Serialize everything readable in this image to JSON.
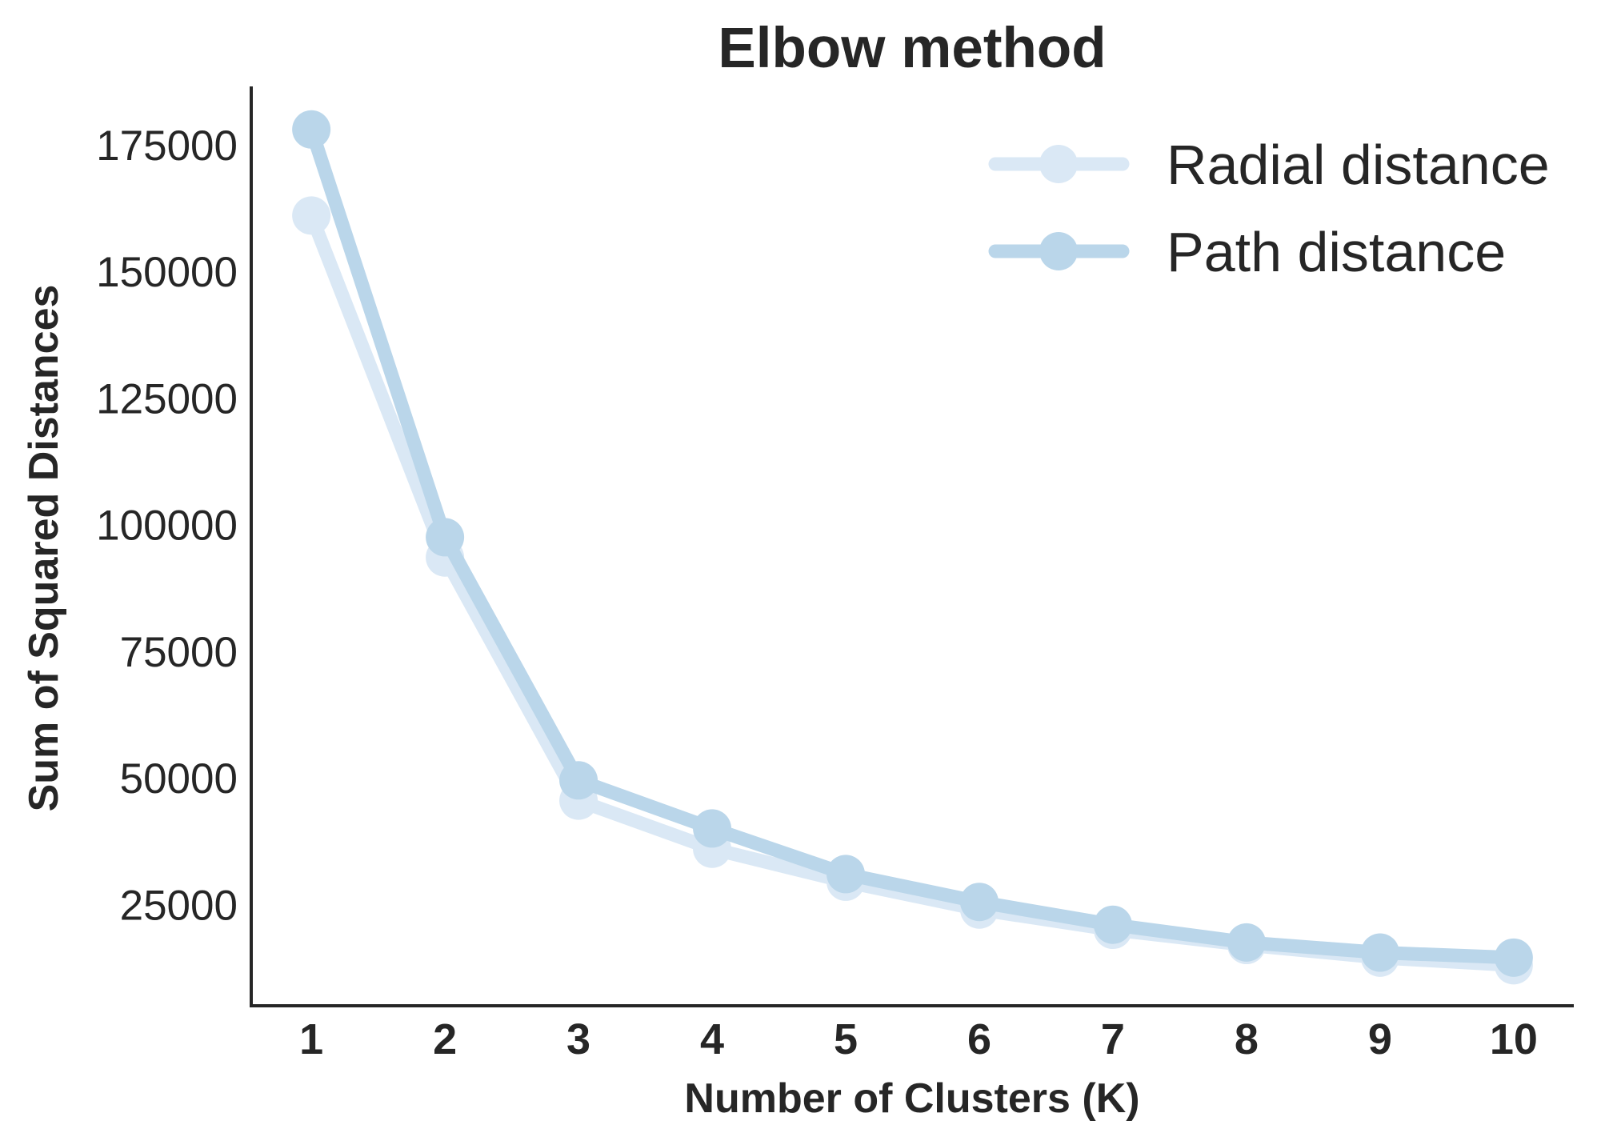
{
  "chart_data": {
    "type": "line",
    "title": "Elbow method",
    "xlabel": "Number of Clusters (K)",
    "ylabel": "Sum of Squared Distances",
    "x": [
      1,
      2,
      3,
      4,
      5,
      6,
      7,
      8,
      9,
      10
    ],
    "x_tick_labels": [
      "1",
      "2",
      "3",
      "4",
      "5",
      "6",
      "7",
      "8",
      "9",
      "10"
    ],
    "y_ticks": [
      25000,
      50000,
      75000,
      100000,
      125000,
      150000,
      175000
    ],
    "y_tick_labels": [
      "25000",
      "50000",
      "75000",
      "100000",
      "125000",
      "150000",
      "175000"
    ],
    "xlim": [
      0.55,
      10.45
    ],
    "ylim": [
      5000,
      186500
    ],
    "grid": false,
    "legend_position": "top-right",
    "series": [
      {
        "name": "Radial distance",
        "color": "#dae8f5",
        "values": [
          161000,
          93500,
          45500,
          36000,
          29500,
          24000,
          20000,
          17000,
          14500,
          13000
        ]
      },
      {
        "name": "Path distance",
        "color": "#bad6ea",
        "values": [
          178000,
          97500,
          49500,
          40000,
          31000,
          25500,
          21000,
          17500,
          15500,
          14500
        ]
      }
    ]
  }
}
